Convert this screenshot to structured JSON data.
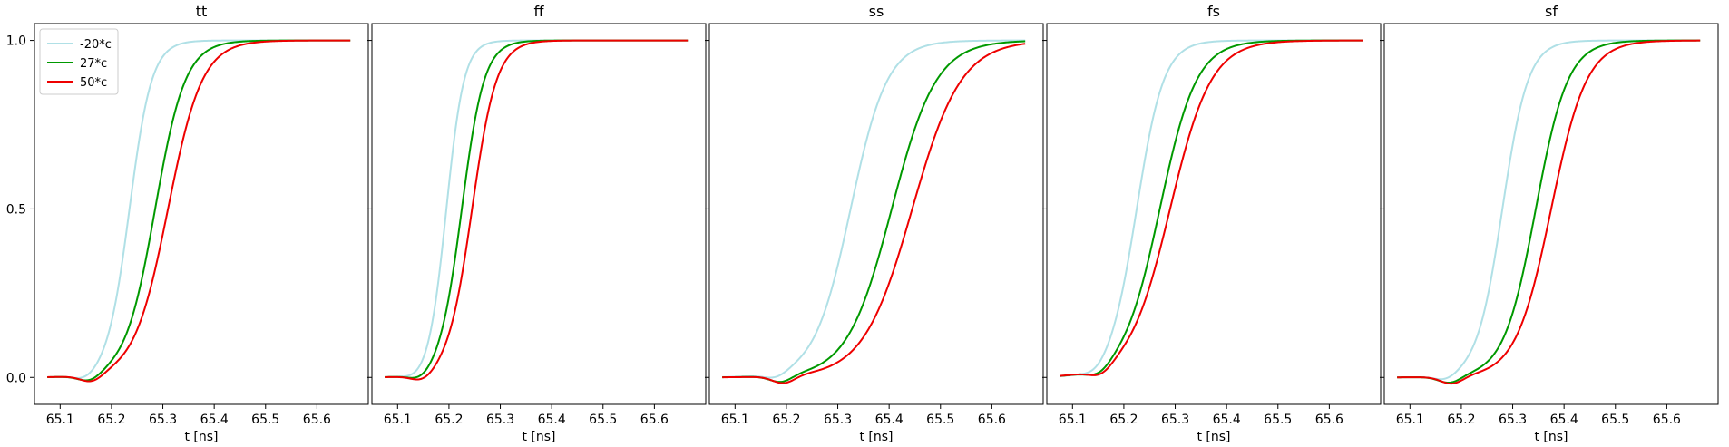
{
  "chart_data": [
    {
      "type": "line",
      "title": "tt",
      "xlabel": "t [ns]",
      "ylabel": "",
      "xlim": [
        65.05,
        65.7
      ],
      "ylim": [
        -0.08,
        1.05
      ],
      "xticks": [
        65.1,
        65.2,
        65.3,
        65.4,
        65.5,
        65.6
      ],
      "xtick_labels": [
        "65.1",
        "65.2",
        "65.3",
        "65.4",
        "65.5",
        "65.6"
      ],
      "yticks": [
        0.0,
        0.5,
        1.0
      ],
      "ytick_labels": [
        "0.0",
        "0.5",
        "1.0"
      ],
      "legend": {
        "placement": "upper-left",
        "entries": [
          "-20*c",
          "27*c",
          "50*c"
        ]
      },
      "series": [
        {
          "name": "-20*c",
          "color": "#b0e0e6",
          "x0": 65.075,
          "x1": 65.665,
          "dip": -0.015,
          "tdip": 65.15,
          "mid": 65.235,
          "k": 46
        },
        {
          "name": "27*c",
          "color": "#009900",
          "x0": 65.075,
          "x1": 65.665,
          "dip": -0.02,
          "tdip": 65.158,
          "mid": 65.285,
          "k": 34
        },
        {
          "name": "50*c",
          "color": "#ee0000",
          "x0": 65.075,
          "x1": 65.665,
          "dip": -0.022,
          "tdip": 65.162,
          "mid": 65.31,
          "k": 30
        }
      ]
    },
    {
      "type": "line",
      "title": "ff",
      "xlabel": "t [ns]",
      "ylabel": "",
      "xlim": [
        65.05,
        65.7
      ],
      "ylim": [
        -0.08,
        1.05
      ],
      "xticks": [
        65.1,
        65.2,
        65.3,
        65.4,
        65.5,
        65.6
      ],
      "xtick_labels": [
        "65.1",
        "65.2",
        "65.3",
        "65.4",
        "65.5",
        "65.6"
      ],
      "yticks": [
        0.0,
        0.5,
        1.0
      ],
      "ytick_labels": [
        "0.0",
        "0.5",
        "1.0"
      ],
      "series": [
        {
          "name": "-20*c",
          "color": "#b0e0e6",
          "x0": 65.075,
          "x1": 65.665,
          "dip": -0.012,
          "tdip": 65.14,
          "mid": 65.195,
          "k": 58
        },
        {
          "name": "27*c",
          "color": "#009900",
          "x0": 65.075,
          "x1": 65.665,
          "dip": -0.018,
          "tdip": 65.146,
          "mid": 65.225,
          "k": 46
        },
        {
          "name": "50*c",
          "color": "#ee0000",
          "x0": 65.075,
          "x1": 65.665,
          "dip": -0.02,
          "tdip": 65.15,
          "mid": 65.245,
          "k": 42
        }
      ]
    },
    {
      "type": "line",
      "title": "ss",
      "xlabel": "t [ns]",
      "ylabel": "",
      "xlim": [
        65.05,
        65.7
      ],
      "ylim": [
        -0.08,
        1.05
      ],
      "xticks": [
        65.1,
        65.2,
        65.3,
        65.4,
        65.5,
        65.6
      ],
      "xtick_labels": [
        "65.1",
        "65.2",
        "65.3",
        "65.4",
        "65.5",
        "65.6"
      ],
      "yticks": [
        0.0,
        0.5,
        1.0
      ],
      "ytick_labels": [
        "0.0",
        "0.5",
        "1.0"
      ],
      "series": [
        {
          "name": "-20*c",
          "color": "#b0e0e6",
          "x0": 65.075,
          "x1": 65.665,
          "dip": -0.015,
          "tdip": 65.18,
          "mid": 65.325,
          "k": 28
        },
        {
          "name": "27*c",
          "color": "#009900",
          "x0": 65.075,
          "x1": 65.665,
          "dip": -0.02,
          "tdip": 65.19,
          "mid": 65.405,
          "k": 23
        },
        {
          "name": "50*c",
          "color": "#ee0000",
          "x0": 65.075,
          "x1": 65.665,
          "dip": -0.022,
          "tdip": 65.195,
          "mid": 65.445,
          "k": 21
        }
      ]
    },
    {
      "type": "line",
      "title": "fs",
      "xlabel": "t [ns]",
      "ylabel": "",
      "xlim": [
        65.05,
        65.7
      ],
      "ylim": [
        -0.08,
        1.05
      ],
      "xticks": [
        65.1,
        65.2,
        65.3,
        65.4,
        65.5,
        65.6
      ],
      "xtick_labels": [
        "65.1",
        "65.2",
        "65.3",
        "65.4",
        "65.5",
        "65.6"
      ],
      "yticks": [
        0.0,
        0.5,
        1.0
      ],
      "ytick_labels": [
        "0.0",
        "0.5",
        "1.0"
      ],
      "series": [
        {
          "name": "-20*c",
          "color": "#b0e0e6",
          "x0": 65.075,
          "x1": 65.665,
          "dip": -0.015,
          "tdip": 65.145,
          "mid": 65.225,
          "k": 38
        },
        {
          "name": "27*c",
          "color": "#009900",
          "x0": 65.075,
          "x1": 65.665,
          "dip": -0.02,
          "tdip": 65.152,
          "mid": 65.27,
          "k": 28
        },
        {
          "name": "50*c",
          "color": "#ee0000",
          "x0": 65.075,
          "x1": 65.665,
          "dip": -0.022,
          "tdip": 65.156,
          "mid": 65.29,
          "k": 25
        }
      ]
    },
    {
      "type": "line",
      "title": "sf",
      "xlabel": "t [ns]",
      "ylabel": "",
      "xlim": [
        65.05,
        65.7
      ],
      "ylim": [
        -0.08,
        1.05
      ],
      "xticks": [
        65.1,
        65.2,
        65.3,
        65.4,
        65.5,
        65.6
      ],
      "xtick_labels": [
        "65.1",
        "65.2",
        "65.3",
        "65.4",
        "65.5",
        "65.6"
      ],
      "yticks": [
        0.0,
        0.5,
        1.0
      ],
      "ytick_labels": [
        "0.0",
        "0.5",
        "1.0"
      ],
      "series": [
        {
          "name": "-20*c",
          "color": "#b0e0e6",
          "x0": 65.075,
          "x1": 65.665,
          "dip": -0.015,
          "tdip": 65.17,
          "mid": 65.28,
          "k": 40
        },
        {
          "name": "27*c",
          "color": "#009900",
          "x0": 65.075,
          "x1": 65.665,
          "dip": -0.02,
          "tdip": 65.178,
          "mid": 65.345,
          "k": 32
        },
        {
          "name": "50*c",
          "color": "#ee0000",
          "x0": 65.075,
          "x1": 65.665,
          "dip": -0.022,
          "tdip": 65.182,
          "mid": 65.375,
          "k": 29
        }
      ]
    }
  ]
}
